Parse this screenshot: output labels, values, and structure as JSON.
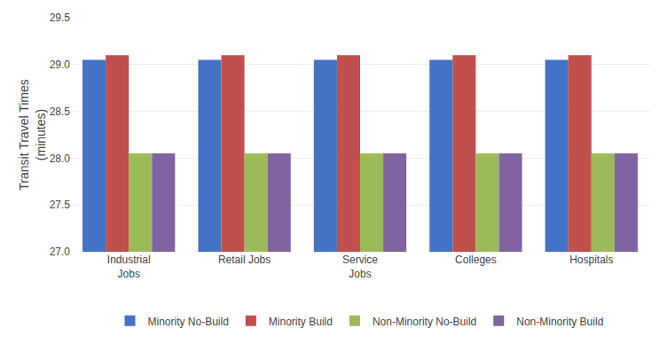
{
  "chart_data": {
    "type": "bar",
    "categories": [
      "Industrial\nJobs",
      "Retail Jobs",
      "Service\nJobs",
      "Colleges",
      "Hospitals"
    ],
    "series": [
      {
        "name": "Minority No-Build",
        "color": "#4472C4",
        "values": [
          29.05,
          29.05,
          29.05,
          29.05,
          29.05
        ]
      },
      {
        "name": "Minority Build",
        "color": "#C0504D",
        "values": [
          29.1,
          29.1,
          29.1,
          29.1,
          29.1
        ]
      },
      {
        "name": "Non-Minority No-Build",
        "color": "#9BBB59",
        "values": [
          28.05,
          28.05,
          28.05,
          28.05,
          28.05
        ]
      },
      {
        "name": "Non-Minority Build",
        "color": "#8064A2",
        "values": [
          28.05,
          28.05,
          28.05,
          28.05,
          28.05
        ]
      }
    ],
    "ylabel": "Transit Travel Times\n(minutes)",
    "ylim": [
      27.0,
      29.5
    ],
    "yticks": [
      {
        "value": 27.0,
        "label": "27.0"
      },
      27.5,
      {
        "value": 28.0,
        "label": "28.0"
      },
      28.5,
      {
        "value": 29.0,
        "label": "29.0"
      },
      29.5
    ],
    "grid": true,
    "legend": "bottom"
  }
}
